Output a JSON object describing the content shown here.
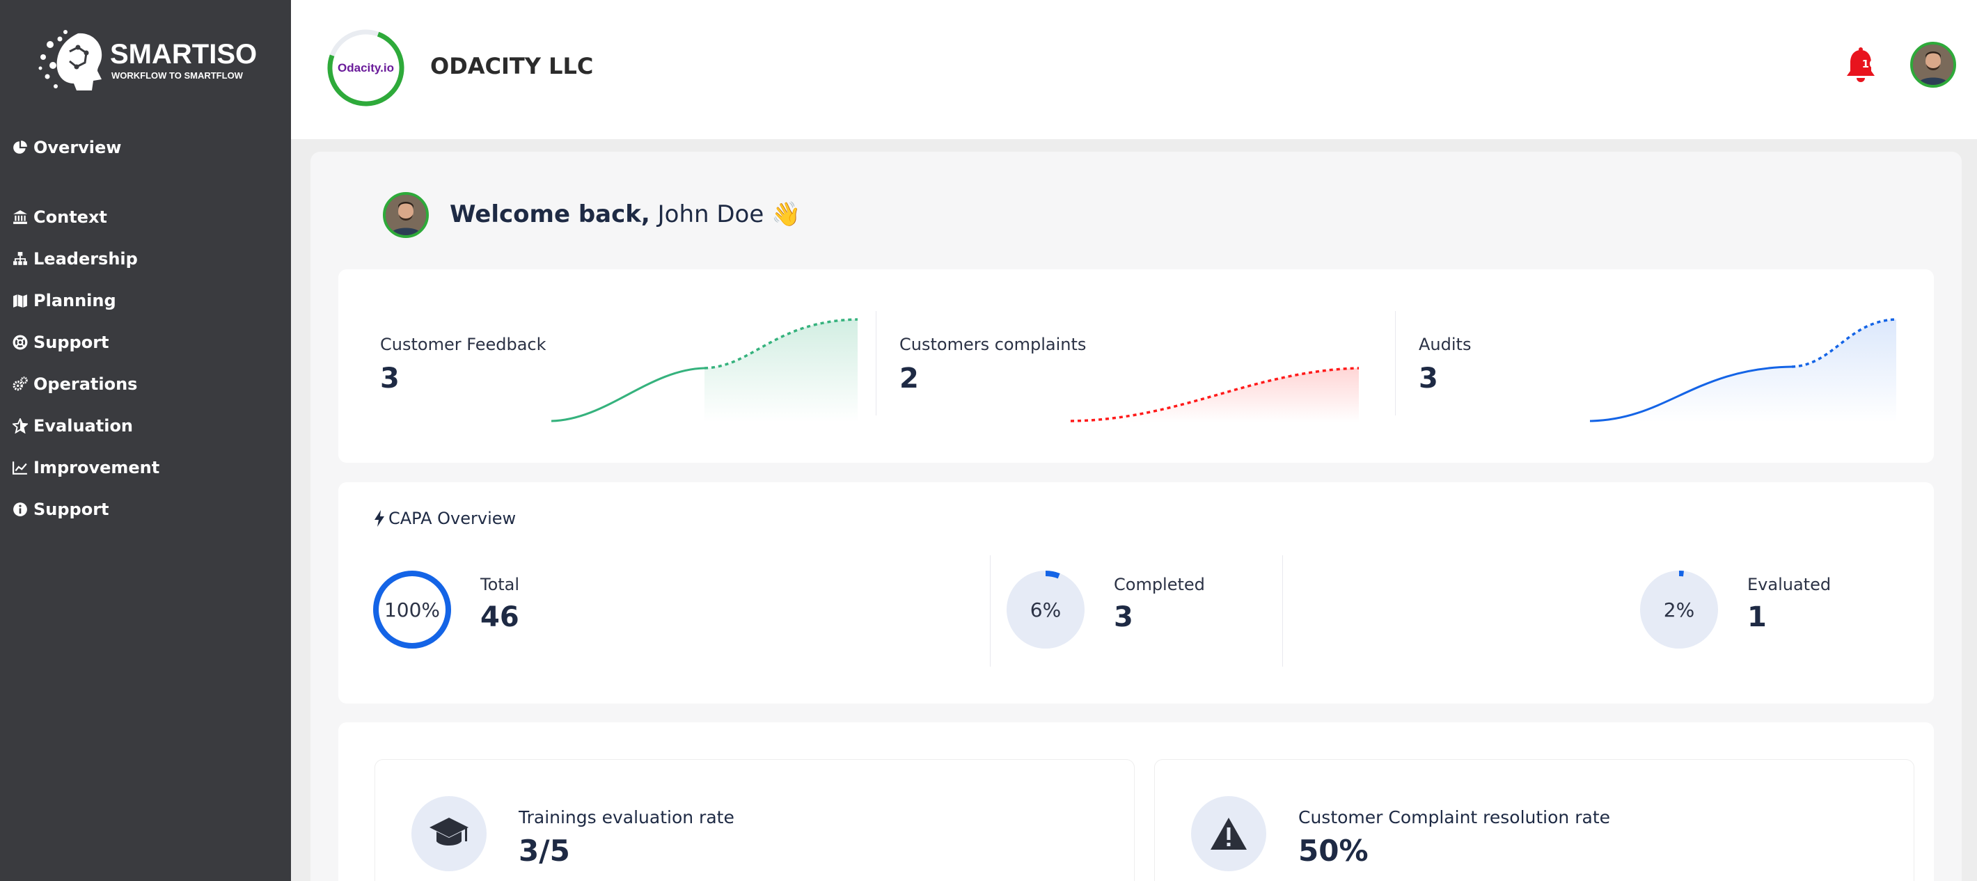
{
  "brand": {
    "name": "SMARTISO",
    "tagline": "WORKFLOW TO SMARTFLOW"
  },
  "sidebar": {
    "items": [
      {
        "label": "Overview",
        "icon": "chart-pie-icon"
      },
      {
        "label": "Context",
        "icon": "institution-icon"
      },
      {
        "label": "Leadership",
        "icon": "sitemap-icon"
      },
      {
        "label": "Planning",
        "icon": "map-icon"
      },
      {
        "label": "Support",
        "icon": "lifebuoy-icon"
      },
      {
        "label": "Operations",
        "icon": "cogs-icon"
      },
      {
        "label": "Evaluation",
        "icon": "star-icon"
      },
      {
        "label": "Improvement",
        "icon": "line-chart-icon"
      },
      {
        "label": "Support",
        "icon": "info-circle-icon"
      }
    ]
  },
  "header": {
    "org_logo_text": "Odacity.io",
    "org_name": "ODACITY LLC",
    "notification_count": "16"
  },
  "welcome": {
    "greeting": "Welcome back,",
    "user_name": "John Doe",
    "emoji": "👋"
  },
  "stats": [
    {
      "label": "Customer Feedback",
      "value": "3",
      "color": "#35b27d"
    },
    {
      "label": "Customers complaints",
      "value": "2",
      "color": "#ff1a1a"
    },
    {
      "label": "Audits",
      "value": "3",
      "color": "#1464e6"
    }
  ],
  "capa": {
    "title": "CAPA Overview",
    "items": [
      {
        "label": "Total",
        "value": "46",
        "percent_text": "100%",
        "percent": 100
      },
      {
        "label": "Completed",
        "value": "3",
        "percent_text": "6%",
        "percent": 6
      },
      {
        "label": "Evaluated",
        "value": "1",
        "percent_text": "2%",
        "percent": 2
      }
    ]
  },
  "metrics": [
    {
      "label": "Trainings evaluation rate",
      "value": "3/5",
      "icon": "graduation-cap-icon"
    },
    {
      "label": "Customer Complaint resolution rate",
      "value": "50%",
      "icon": "warning-icon"
    }
  ],
  "colors": {
    "sidebar": "#3a3b3f",
    "accent_blue": "#1464e6",
    "ring_green": "#2eaa3a",
    "alert_red": "#e8141e"
  }
}
